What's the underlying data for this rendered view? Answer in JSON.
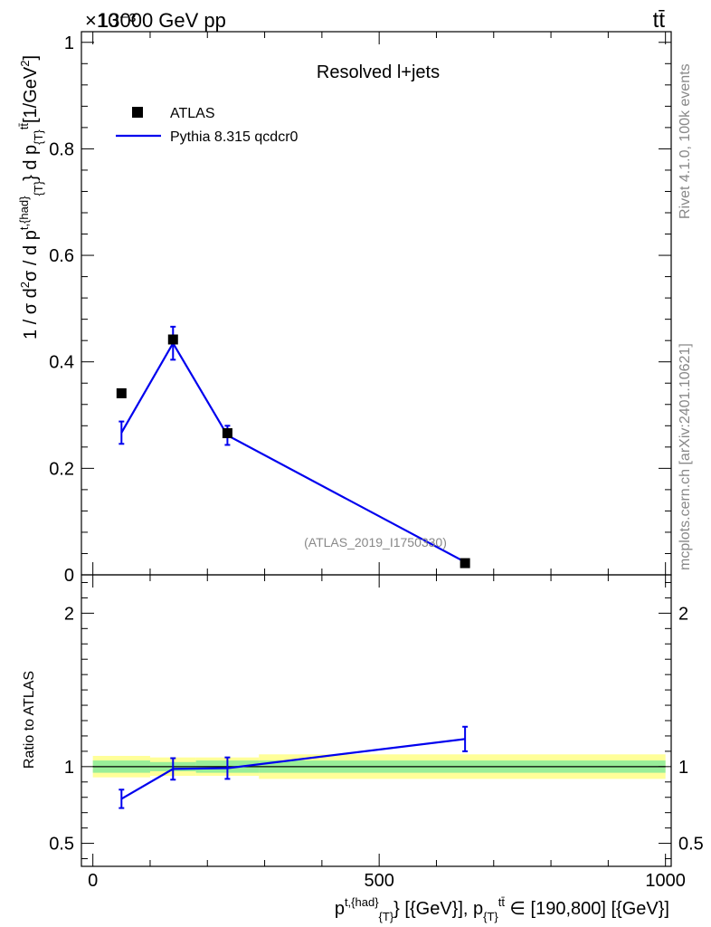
{
  "header": {
    "energy": "13000 GeV pp",
    "process": "tt̄",
    "exponent": "×10⁻³"
  },
  "side": {
    "rivet": "Rivet 4.1.0,  100k events",
    "mcplots": "mcplots.cern.ch [arXiv:2401.10621]"
  },
  "chart_data": [
    {
      "type": "line",
      "title": "Resolved l+jets",
      "watermark": "(ATLAS_2019_I1750330)",
      "ylabel": "1 / σ d²σ / d p_T^{t,had} d p_T^{tt̄} [1/GeV²]",
      "yscale_note": "×10⁻³",
      "xlim": [
        -20,
        1010
      ],
      "ylim": [
        0,
        1.02
      ],
      "yticks": [
        0,
        0.2,
        0.4,
        0.6,
        0.8,
        1
      ],
      "ytick_labels": [
        "0",
        "0.2",
        "0.4",
        "0.6",
        "0.8",
        "1"
      ],
      "legend": {
        "position": "top-left",
        "entries": [
          "ATLAS",
          "Pythia 8.315 qcdcr0"
        ]
      },
      "series": [
        {
          "name": "ATLAS",
          "style": "markers",
          "color": "#000000",
          "x": [
            50,
            140,
            235,
            650
          ],
          "y": [
            0.341,
            0.442,
            0.266,
            0.022
          ]
        },
        {
          "name": "Pythia 8.315 qcdcr0",
          "style": "line-errorbars",
          "color": "#0000ee",
          "x": [
            50,
            140,
            235,
            650
          ],
          "y": [
            0.267,
            0.435,
            0.262,
            0.024
          ],
          "err": [
            0.021,
            0.031,
            0.018,
            0.002
          ]
        }
      ]
    },
    {
      "type": "line",
      "ylabel": "Ratio to ATLAS",
      "xlabel": "p_T^{t,had} [GeV], p_T^{tt̄} ∈ [190,800] [GeV]",
      "xlim": [
        -20,
        1010
      ],
      "ylim": [
        0.35,
        2.25
      ],
      "yticks": [
        0.5,
        1,
        2
      ],
      "ytick_labels": [
        "0.5",
        "1",
        "2"
      ],
      "xticks": [
        0,
        500,
        1000
      ],
      "xtick_labels": [
        "0",
        "500",
        "1000"
      ],
      "uncertainty_bands": [
        {
          "x0": 0,
          "x1": 100,
          "inner": [
            0.96,
            1.04
          ],
          "outer": [
            0.93,
            1.07
          ]
        },
        {
          "x0": 100,
          "x1": 180,
          "inner": [
            0.97,
            1.03
          ],
          "outer": [
            0.94,
            1.06
          ]
        },
        {
          "x0": 180,
          "x1": 290,
          "inner": [
            0.96,
            1.04
          ],
          "outer": [
            0.94,
            1.06
          ]
        },
        {
          "x0": 290,
          "x1": 1000,
          "inner": [
            0.96,
            1.04
          ],
          "outer": [
            0.92,
            1.08
          ]
        }
      ],
      "series": [
        {
          "name": "Pythia 8.315 qcdcr0 / ATLAS",
          "color": "#0000ee",
          "x": [
            50,
            140,
            235,
            650
          ],
          "y": [
            0.79,
            0.985,
            0.99,
            1.18
          ],
          "err": [
            0.06,
            0.07,
            0.07,
            0.08
          ]
        }
      ]
    }
  ]
}
